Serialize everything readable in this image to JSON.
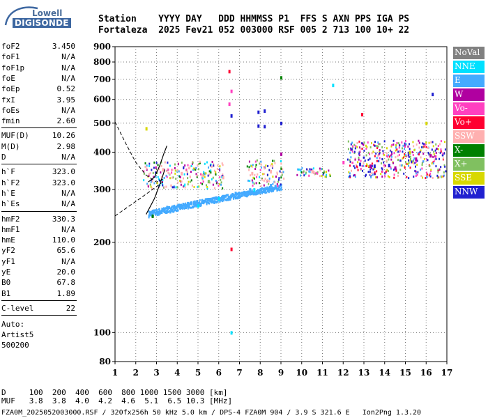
{
  "logo": {
    "line1": "Lowell",
    "line2": "DIGISONDE"
  },
  "header": {
    "line1": "Station    YYYY DAY   DDD HHMMSS P1  FFS S AXN PPS IGA PS",
    "line2": "Fortaleza  2025 Fev21 052 003000 RSF 005 2 713 100 10+ 22"
  },
  "params_group1": [
    {
      "label": "foF2",
      "value": "3.450"
    },
    {
      "label": "foF1",
      "value": "N/A"
    },
    {
      "label": "foF1p",
      "value": "N/A"
    },
    {
      "label": "foE",
      "value": "N/A"
    },
    {
      "label": "foEp",
      "value": "0.52"
    },
    {
      "label": "fxI",
      "value": "3.95"
    },
    {
      "label": "foEs",
      "value": "N/A"
    },
    {
      "label": "fmin",
      "value": "2.60"
    }
  ],
  "params_group2": [
    {
      "label": "MUF(D)",
      "value": "10.26"
    },
    {
      "label": "M(D)",
      "value": "2.98"
    },
    {
      "label": "D",
      "value": "N/A"
    }
  ],
  "params_group3": [
    {
      "label": "h`F",
      "value": "323.0"
    },
    {
      "label": "h`F2",
      "value": "323.0"
    },
    {
      "label": "h`E",
      "value": "N/A"
    },
    {
      "label": "h`Es",
      "value": "N/A"
    }
  ],
  "params_group4": [
    {
      "label": "hmF2",
      "value": "330.3"
    },
    {
      "label": "hmF1",
      "value": "N/A"
    },
    {
      "label": "hmE",
      "value": "110.0"
    },
    {
      "label": "yF2",
      "value": "65.6"
    },
    {
      "label": "yF1",
      "value": "N/A"
    },
    {
      "label": "yE",
      "value": "20.0"
    },
    {
      "label": "B0",
      "value": "67.8"
    },
    {
      "label": "B1",
      "value": "1.89"
    }
  ],
  "params_group5": [
    {
      "label": "C-level",
      "value": "22"
    }
  ],
  "auto": {
    "line1": "Auto:",
    "line2": "Artist5",
    "line3": "500200"
  },
  "footer": {
    "line1": "D     100  200  400  600  800 1000 1500 3000 [km]",
    "line2": "MUF   3.8  3.8  4.0  4.2  4.6  5.1  6.5 10.3 [MHz]",
    "line3": "FZA0M_2025052003000.RSF / 320fx256h 50 kHz 5.0 km / DPS-4 FZA0M 904 / 3.9 S 321.6 E   Ion2Png 1.3.20"
  },
  "legend": [
    {
      "label": "NoVal",
      "color": "#808080"
    },
    {
      "label": "NNE",
      "color": "#00e0ff"
    },
    {
      "label": "E",
      "color": "#44aaff"
    },
    {
      "label": "W",
      "color": "#b000a0"
    },
    {
      "label": "Vo-",
      "color": "#ff40c0"
    },
    {
      "label": "Vo+",
      "color": "#ff0030"
    },
    {
      "label": "SSW",
      "color": "#ffb0b0"
    },
    {
      "label": "X-",
      "color": "#008000"
    },
    {
      "label": "X+",
      "color": "#80c060"
    },
    {
      "label": "SSE",
      "color": "#d8d800"
    },
    {
      "label": "NNW",
      "color": "#2020d0"
    }
  ],
  "chart_data": {
    "type": "scatter",
    "title": "",
    "xlabel": "",
    "ylabel": "",
    "xlim": [
      1,
      17
    ],
    "ylim": [
      80,
      900
    ],
    "yscale": "log",
    "x_ticks": [
      1,
      2,
      3,
      4,
      5,
      6,
      7,
      8,
      9,
      10,
      11,
      12,
      13,
      14,
      15,
      16,
      17
    ],
    "y_ticks": [
      80,
      100,
      200,
      300,
      400,
      500,
      600,
      700,
      800,
      900
    ],
    "series": [
      {
        "name": "NoVal",
        "values": []
      },
      {
        "name": "NNE",
        "values": [
          [
            11.5,
            670
          ],
          [
            6.6,
            100
          ],
          [
            7.7,
            300
          ],
          [
            5,
            265
          ],
          [
            6,
            280
          ]
        ]
      },
      {
        "name": "E",
        "values": [
          [
            2.9,
            255
          ],
          [
            3.5,
            262
          ],
          [
            4.5,
            270
          ],
          [
            5.5,
            278
          ],
          [
            6.2,
            285
          ],
          [
            6.8,
            292
          ],
          [
            7.5,
            300
          ],
          [
            8.5,
            310
          ]
        ]
      },
      {
        "name": "W",
        "values": [
          [
            13.3,
            360
          ],
          [
            14.5,
            355
          ],
          [
            15.5,
            380
          ],
          [
            16.2,
            390
          ],
          [
            9,
            395
          ]
        ]
      },
      {
        "name": "Vo-",
        "values": [
          [
            6.6,
            640
          ],
          [
            6.5,
            580
          ],
          [
            12,
            370
          ]
        ]
      },
      {
        "name": "Vo+",
        "values": [
          [
            6.5,
            745
          ],
          [
            12.9,
            535
          ],
          [
            6.6,
            190
          ]
        ]
      },
      {
        "name": "SSW",
        "values": [
          [
            3.3,
            350
          ],
          [
            4.2,
            340
          ],
          [
            5.2,
            335
          ],
          [
            6.2,
            330
          ],
          [
            7.6,
            340
          ],
          [
            8.5,
            345
          ],
          [
            10.5,
            345
          ]
        ]
      },
      {
        "name": "X-",
        "values": [
          [
            2.8,
            245
          ],
          [
            9,
            710
          ]
        ]
      },
      {
        "name": "X+",
        "values": [
          [
            5.5,
            320
          ]
        ]
      },
      {
        "name": "SSE",
        "values": [
          [
            2.5,
            480
          ],
          [
            16,
            500
          ],
          [
            15.2,
            400
          ]
        ]
      },
      {
        "name": "NNW",
        "values": [
          [
            7.9,
            545
          ],
          [
            8.2,
            550
          ],
          [
            7.9,
            490
          ],
          [
            8.2,
            488
          ],
          [
            12.8,
            365
          ],
          [
            13.5,
            360
          ],
          [
            14.2,
            362
          ],
          [
            16.3,
            625
          ],
          [
            9,
            500
          ],
          [
            6.6,
            530
          ]
        ]
      }
    ]
  }
}
